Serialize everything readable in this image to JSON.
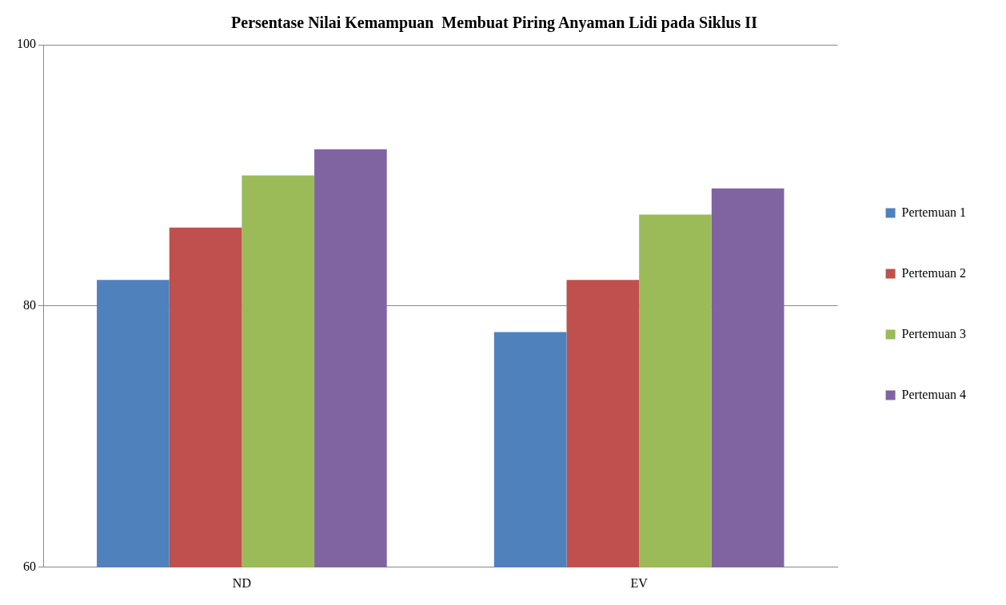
{
  "chart_data": {
    "type": "bar",
    "title": "Persentase Nilai Kemampuan  Membuat Piring Anyaman Lidi pada Siklus II",
    "categories": [
      "ND",
      "EV"
    ],
    "series": [
      {
        "name": "Pertemuan 1",
        "color": "#4f81bd",
        "values": [
          82,
          78
        ]
      },
      {
        "name": "Pertemuan 2",
        "color": "#c0504d",
        "values": [
          86,
          82
        ]
      },
      {
        "name": "Pertemuan 3",
        "color": "#9bbb59",
        "values": [
          90,
          87
        ]
      },
      {
        "name": "Pertemuan 4",
        "color": "#8064a2",
        "values": [
          92,
          89
        ]
      }
    ],
    "ylim": [
      60,
      100
    ],
    "yticks": [
      60,
      80,
      100
    ],
    "grid": "y",
    "legend": "right"
  }
}
